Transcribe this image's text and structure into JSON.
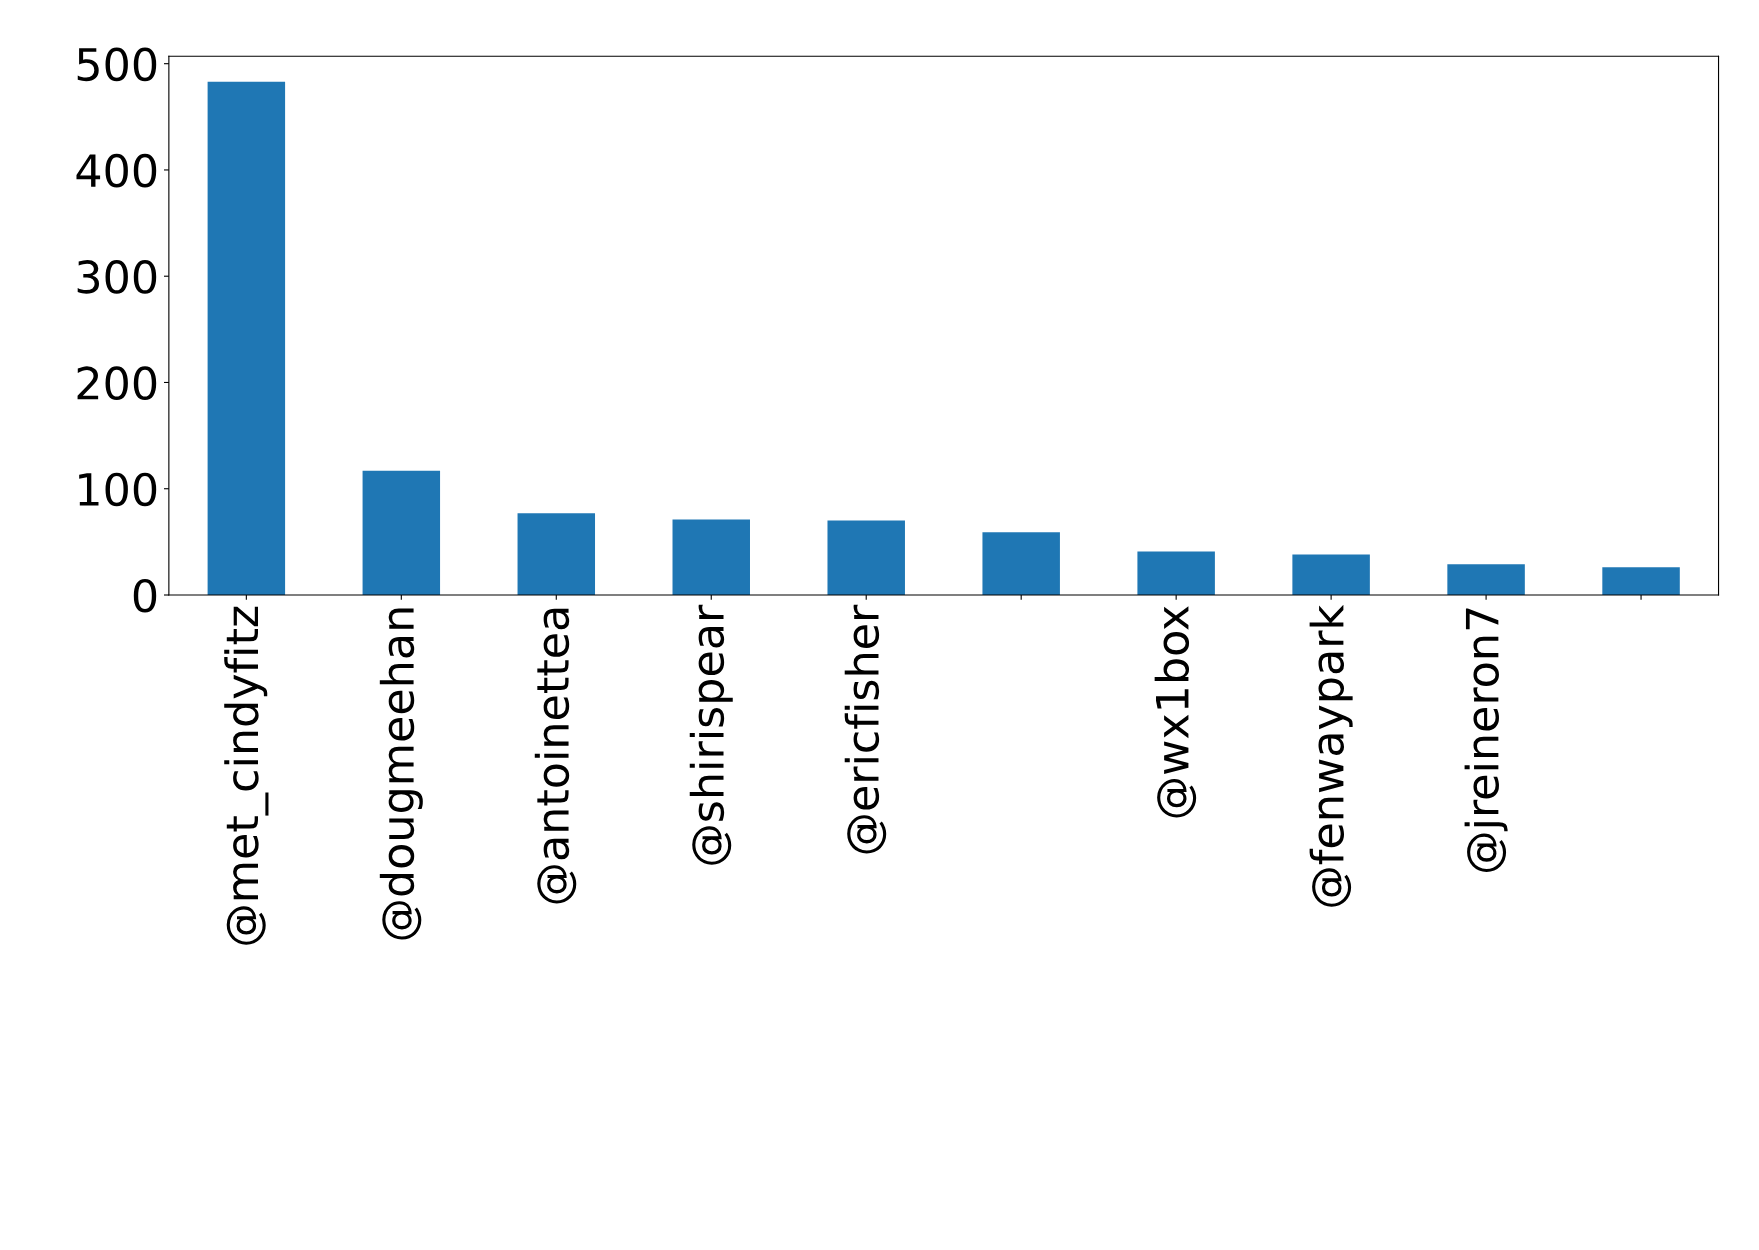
{
  "chart_data": {
    "type": "bar",
    "categories": [
      "@met_cindyfitz",
      "@dougmeehan",
      "@antoinettea",
      "@shirispear",
      "@ericfisher",
      null,
      "@wx1box",
      "@fenwaypark",
      "@jreineron7",
      null
    ],
    "values": [
      483,
      117,
      77,
      71,
      70,
      59,
      41,
      38,
      29,
      26
    ],
    "color": "#1f77b4",
    "ylim": [
      0,
      507
    ],
    "yticks": [
      0,
      100,
      200,
      300,
      400,
      500
    ],
    "grid": false,
    "legend": false
  }
}
